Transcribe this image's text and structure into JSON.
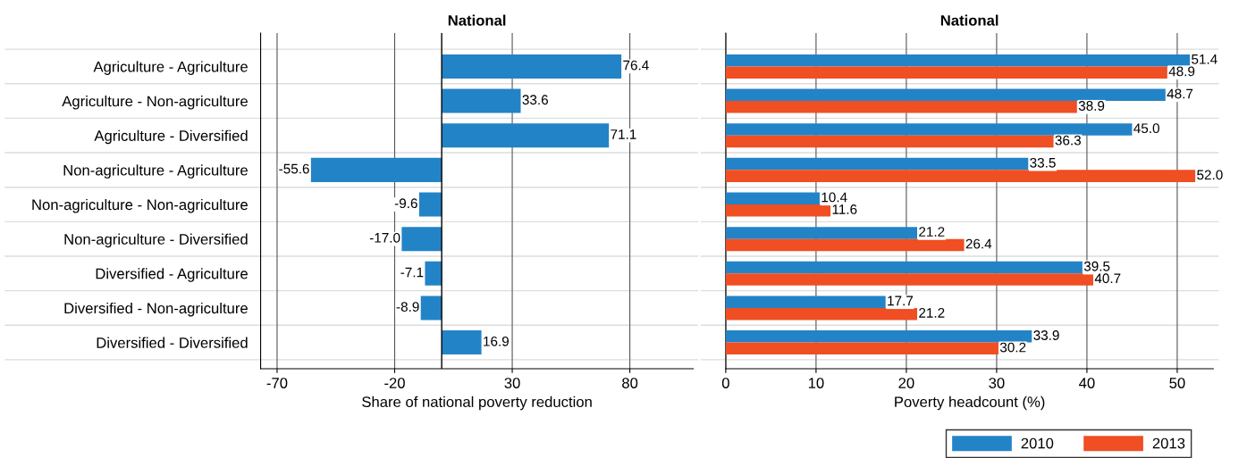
{
  "chart_data": [
    {
      "type": "bar",
      "orientation": "horizontal",
      "title": "National",
      "xlabel": "Share of national poverty reduction",
      "categories": [
        "Agriculture - Agriculture",
        "Agriculture - Non-agriculture",
        "Agriculture - Diversified",
        "Non-agriculture - Agriculture",
        "Non-agriculture - Non-agriculture",
        "Non-agriculture - Diversified",
        "Diversified - Agriculture",
        "Diversified - Non-agriculture",
        "Diversified - Diversified"
      ],
      "series": [
        {
          "color": "#2383c7",
          "values": [
            76.4,
            33.6,
            71.1,
            -55.6,
            -9.6,
            -17.0,
            -7.1,
            -8.9,
            16.9
          ],
          "value_labels": [
            "76.4",
            "33.6",
            "71.1",
            "-55.6",
            "-9.6",
            "-17.0",
            "-7.1",
            "-8.9",
            "16.9"
          ]
        }
      ],
      "xlim": [
        -77,
        107
      ],
      "xticks": [
        -70,
        -20,
        30,
        80
      ],
      "grid": "x",
      "ref_lines": [
        {
          "axis": "x",
          "value": 0,
          "color": "#000000"
        }
      ]
    },
    {
      "type": "bar",
      "orientation": "horizontal",
      "title": "National",
      "xlabel": "Poverty headcount (%)",
      "categories": [
        null,
        null,
        null,
        null,
        null,
        null,
        null,
        null,
        null
      ],
      "series": [
        {
          "name": "2010",
          "color": "#2383c7",
          "values": [
            51.4,
            48.7,
            45.0,
            33.5,
            10.4,
            21.2,
            39.5,
            17.7,
            33.9
          ],
          "value_labels": [
            "51.4",
            "48.7",
            "45.0",
            "33.5",
            "10.4",
            "21.2",
            "39.5",
            "17.7",
            "33.9"
          ]
        },
        {
          "name": "2013",
          "color": "#f04e23",
          "values": [
            48.9,
            38.9,
            36.3,
            52.0,
            11.6,
            26.4,
            40.7,
            21.2,
            30.2
          ],
          "value_labels": [
            "48.9",
            "38.9",
            "36.3",
            "52.0",
            "11.6",
            "26.4",
            "40.7",
            "21.2",
            "30.2"
          ]
        }
      ],
      "xlim": [
        0,
        54
      ],
      "xticks": [
        0,
        10,
        20,
        30,
        40,
        50
      ],
      "grid": "x",
      "legend": "bottom right",
      "tick_labels": "x"
    }
  ]
}
